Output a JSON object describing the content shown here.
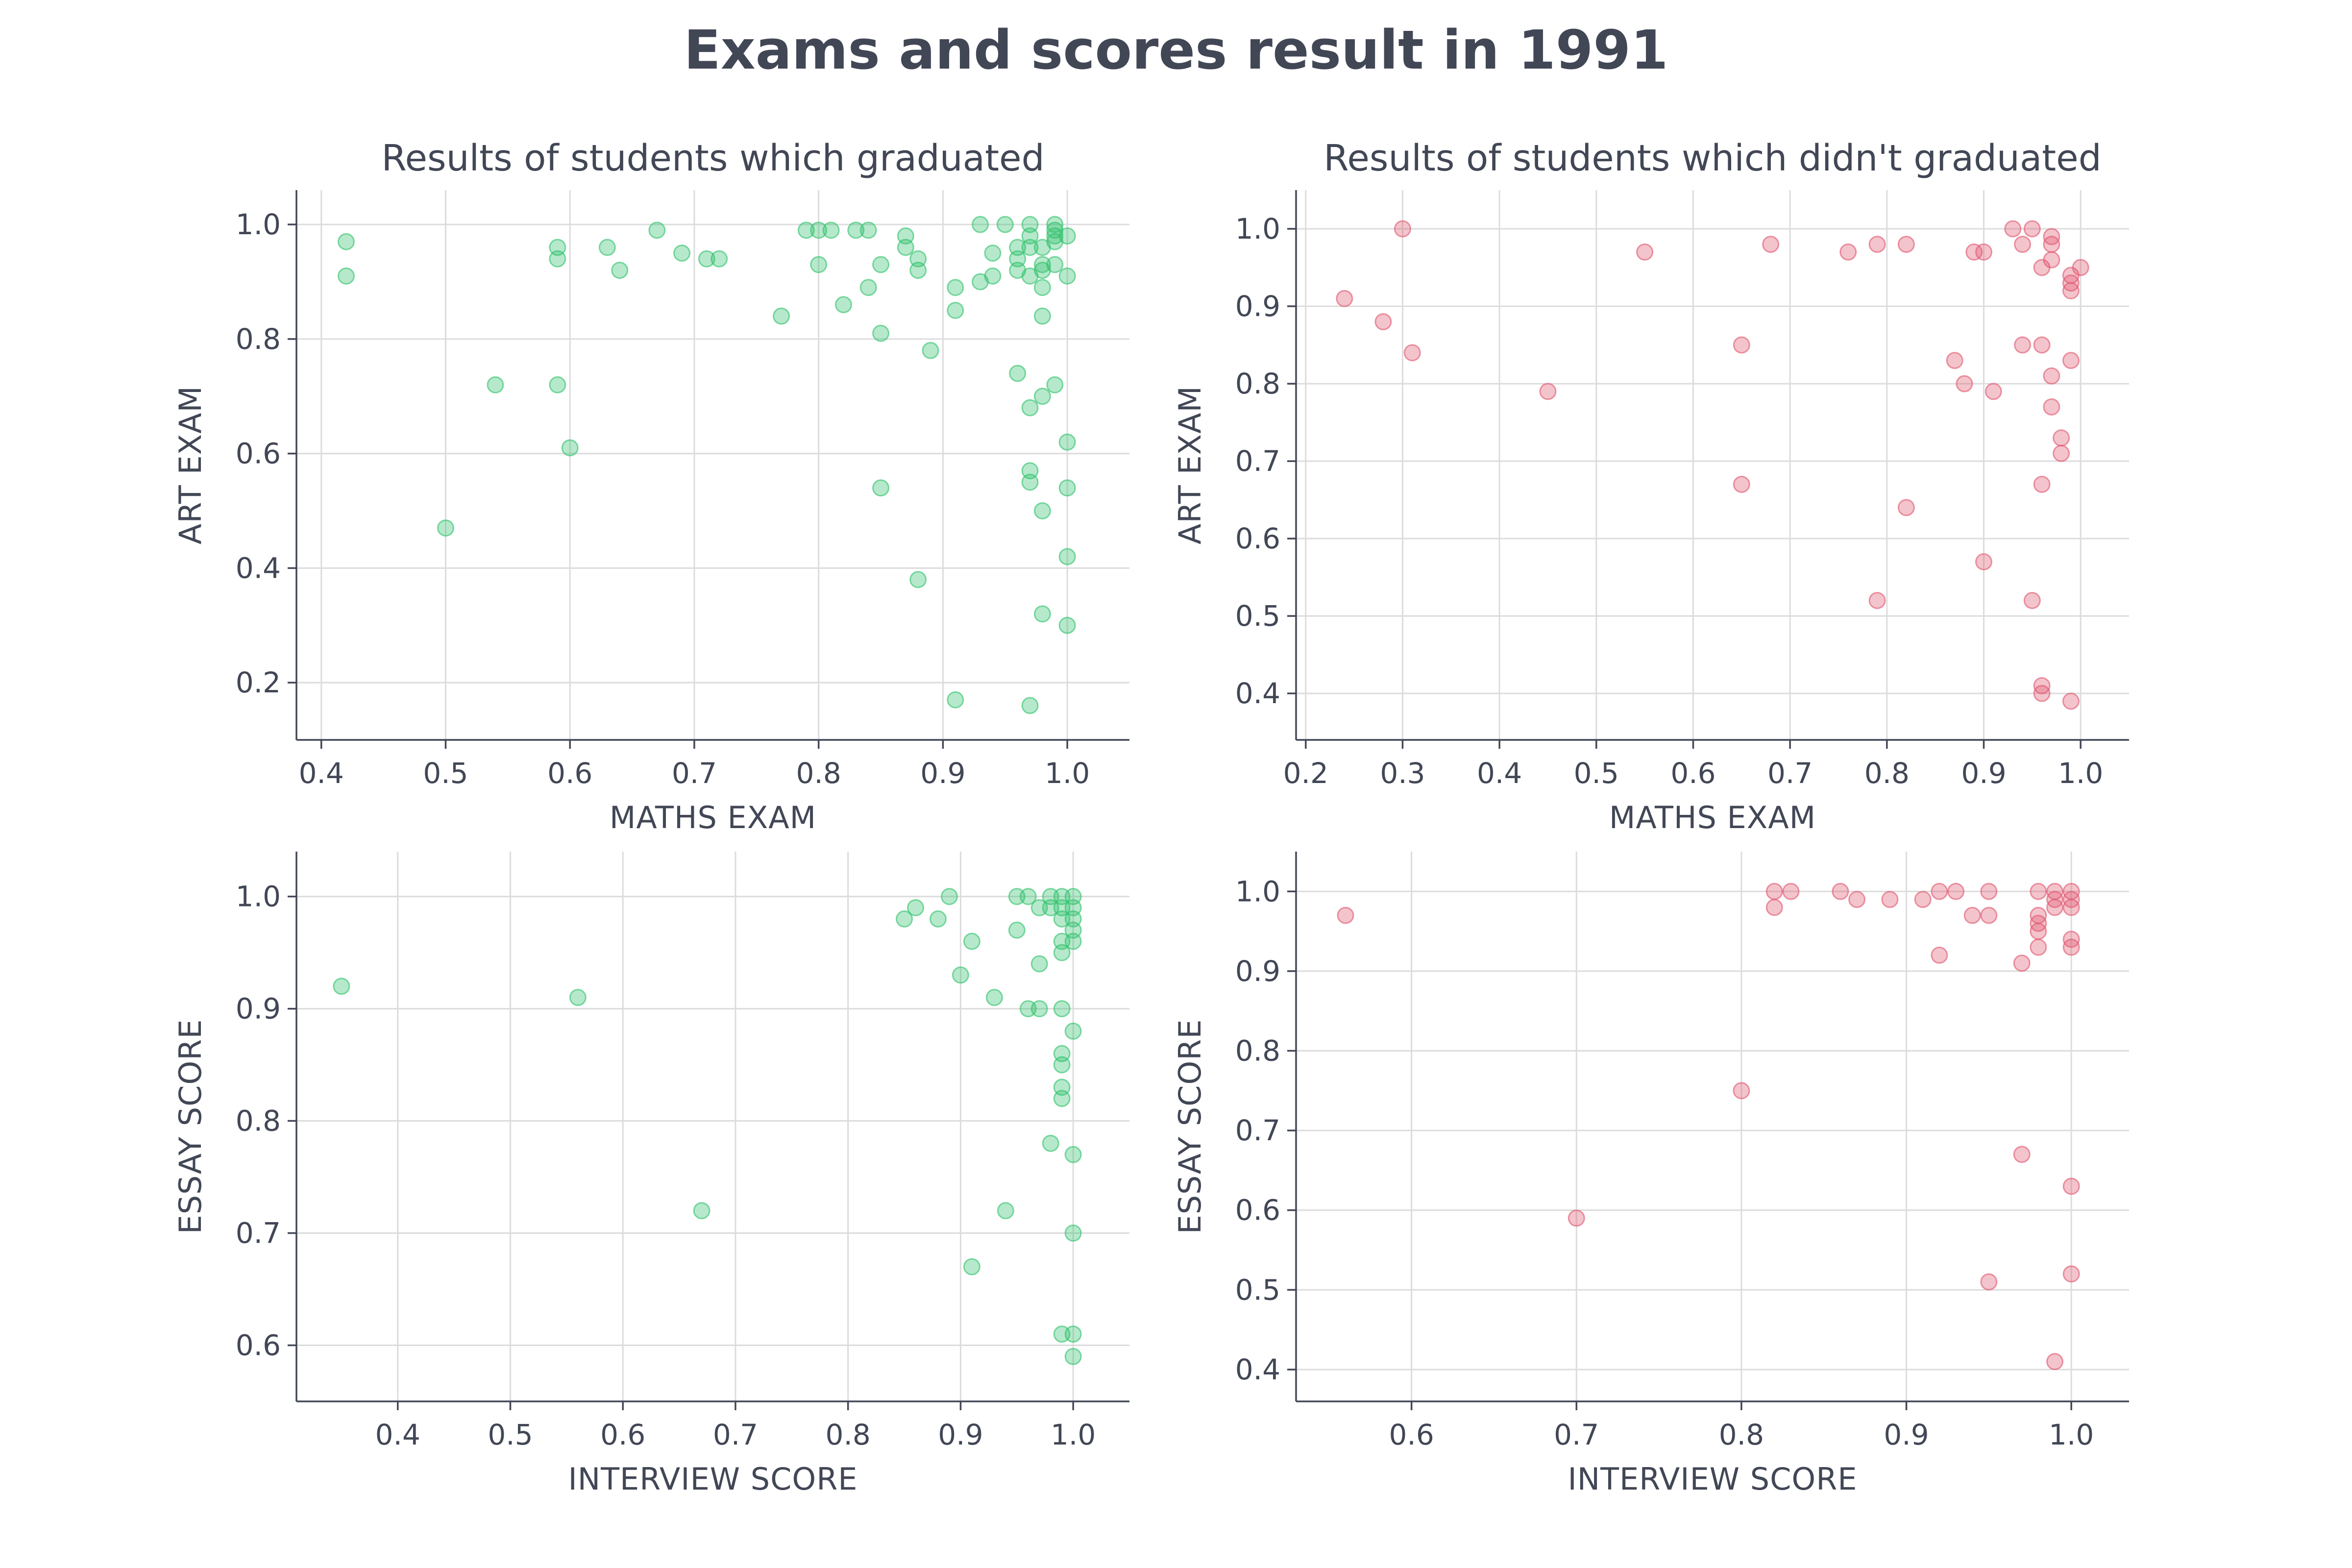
{
  "figure": {
    "title": "Exams and scores result in 1991",
    "colors": {
      "graduated": "#2fc16a",
      "not_graduated": "#e0556e"
    }
  },
  "chart_data": [
    {
      "type": "scatter",
      "title": "Results of students which graduated",
      "xlabel": "MATHS EXAM",
      "ylabel": "ART EXAM",
      "xlim": [
        0.38,
        1.05
      ],
      "ylim": [
        0.1,
        1.06
      ],
      "xticks": [
        "0.4",
        "0.5",
        "0.6",
        "0.7",
        "0.8",
        "0.9",
        "1.0"
      ],
      "yticks": [
        "0.2",
        "0.4",
        "0.6",
        "0.8",
        "1.0"
      ],
      "grid": true,
      "color": "#2fc16a",
      "points": [
        [
          0.42,
          0.97
        ],
        [
          0.42,
          0.91
        ],
        [
          0.5,
          0.47
        ],
        [
          0.54,
          0.72
        ],
        [
          0.59,
          0.96
        ],
        [
          0.59,
          0.94
        ],
        [
          0.59,
          0.72
        ],
        [
          0.6,
          0.61
        ],
        [
          0.63,
          0.96
        ],
        [
          0.64,
          0.92
        ],
        [
          0.67,
          0.99
        ],
        [
          0.69,
          0.95
        ],
        [
          0.71,
          0.94
        ],
        [
          0.72,
          0.94
        ],
        [
          0.77,
          0.84
        ],
        [
          0.79,
          0.99
        ],
        [
          0.8,
          0.99
        ],
        [
          0.81,
          0.99
        ],
        [
          0.8,
          0.93
        ],
        [
          0.82,
          0.86
        ],
        [
          0.83,
          0.99
        ],
        [
          0.84,
          0.99
        ],
        [
          0.84,
          0.89
        ],
        [
          0.85,
          0.93
        ],
        [
          0.85,
          0.81
        ],
        [
          0.85,
          0.54
        ],
        [
          0.87,
          0.98
        ],
        [
          0.87,
          0.96
        ],
        [
          0.88,
          0.94
        ],
        [
          0.88,
          0.92
        ],
        [
          0.88,
          0.38
        ],
        [
          0.89,
          0.78
        ],
        [
          0.91,
          0.89
        ],
        [
          0.91,
          0.85
        ],
        [
          0.91,
          0.17
        ],
        [
          0.93,
          1.0
        ],
        [
          0.93,
          0.9
        ],
        [
          0.94,
          0.95
        ],
        [
          0.94,
          0.91
        ],
        [
          0.95,
          1.0
        ],
        [
          0.96,
          0.96
        ],
        [
          0.96,
          0.94
        ],
        [
          0.96,
          0.92
        ],
        [
          0.96,
          0.74
        ],
        [
          0.97,
          1.0
        ],
        [
          0.97,
          0.98
        ],
        [
          0.97,
          0.96
        ],
        [
          0.97,
          0.91
        ],
        [
          0.97,
          0.68
        ],
        [
          0.97,
          0.57
        ],
        [
          0.97,
          0.55
        ],
        [
          0.97,
          0.16
        ],
        [
          0.98,
          0.96
        ],
        [
          0.98,
          0.93
        ],
        [
          0.98,
          0.92
        ],
        [
          0.98,
          0.89
        ],
        [
          0.98,
          0.84
        ],
        [
          0.98,
          0.7
        ],
        [
          0.98,
          0.5
        ],
        [
          0.98,
          0.32
        ],
        [
          0.99,
          1.0
        ],
        [
          0.99,
          0.99
        ],
        [
          0.99,
          0.98
        ],
        [
          0.99,
          0.97
        ],
        [
          0.99,
          0.93
        ],
        [
          0.99,
          0.72
        ],
        [
          1.0,
          0.98
        ],
        [
          1.0,
          0.91
        ],
        [
          1.0,
          0.62
        ],
        [
          1.0,
          0.54
        ],
        [
          1.0,
          0.42
        ],
        [
          1.0,
          0.3
        ]
      ]
    },
    {
      "type": "scatter",
      "title": "Results of students which didn't graduated",
      "xlabel": "MATHS EXAM",
      "ylabel": "ART EXAM",
      "xlim": [
        0.19,
        1.05
      ],
      "ylim": [
        0.34,
        1.05
      ],
      "xticks": [
        "0.2",
        "0.3",
        "0.4",
        "0.5",
        "0.6",
        "0.7",
        "0.8",
        "0.9",
        "1.0"
      ],
      "yticks": [
        "0.4",
        "0.5",
        "0.6",
        "0.7",
        "0.8",
        "0.9",
        "1.0"
      ],
      "grid": true,
      "color": "#e0556e",
      "points": [
        [
          0.24,
          0.91
        ],
        [
          0.28,
          0.88
        ],
        [
          0.3,
          1.0
        ],
        [
          0.31,
          0.84
        ],
        [
          0.45,
          0.79
        ],
        [
          0.55,
          0.97
        ],
        [
          0.65,
          0.85
        ],
        [
          0.65,
          0.67
        ],
        [
          0.68,
          0.98
        ],
        [
          0.76,
          0.97
        ],
        [
          0.79,
          0.98
        ],
        [
          0.79,
          0.52
        ],
        [
          0.82,
          0.98
        ],
        [
          0.82,
          0.64
        ],
        [
          0.87,
          0.83
        ],
        [
          0.88,
          0.8
        ],
        [
          0.89,
          0.97
        ],
        [
          0.9,
          0.97
        ],
        [
          0.9,
          0.57
        ],
        [
          0.91,
          0.79
        ],
        [
          0.93,
          1.0
        ],
        [
          0.94,
          0.98
        ],
        [
          0.94,
          0.85
        ],
        [
          0.95,
          1.0
        ],
        [
          0.95,
          0.52
        ],
        [
          0.96,
          0.95
        ],
        [
          0.96,
          0.85
        ],
        [
          0.96,
          0.67
        ],
        [
          0.96,
          0.41
        ],
        [
          0.96,
          0.4
        ],
        [
          0.97,
          0.99
        ],
        [
          0.97,
          0.98
        ],
        [
          0.97,
          0.96
        ],
        [
          0.97,
          0.81
        ],
        [
          0.97,
          0.77
        ],
        [
          0.98,
          0.73
        ],
        [
          0.98,
          0.71
        ],
        [
          0.99,
          0.94
        ],
        [
          0.99,
          0.93
        ],
        [
          0.99,
          0.92
        ],
        [
          0.99,
          0.83
        ],
        [
          0.99,
          0.39
        ],
        [
          1.0,
          0.95
        ]
      ]
    },
    {
      "type": "scatter",
      "title": "",
      "xlabel": "INTERVIEW SCORE",
      "ylabel": "ESSAY SCORE",
      "xlim": [
        0.31,
        1.05
      ],
      "ylim": [
        0.55,
        1.04
      ],
      "xticks": [
        "0.4",
        "0.5",
        "0.6",
        "0.7",
        "0.8",
        "0.9",
        "1.0"
      ],
      "yticks": [
        "0.6",
        "0.7",
        "0.8",
        "0.9",
        "1.0"
      ],
      "grid": true,
      "color": "#2fc16a",
      "points": [
        [
          0.35,
          0.92
        ],
        [
          0.56,
          0.91
        ],
        [
          0.67,
          0.72
        ],
        [
          0.85,
          0.98
        ],
        [
          0.86,
          0.99
        ],
        [
          0.88,
          0.98
        ],
        [
          0.89,
          1.0
        ],
        [
          0.9,
          0.93
        ],
        [
          0.91,
          0.96
        ],
        [
          0.91,
          0.67
        ],
        [
          0.93,
          0.91
        ],
        [
          0.94,
          0.72
        ],
        [
          0.95,
          1.0
        ],
        [
          0.95,
          0.97
        ],
        [
          0.96,
          1.0
        ],
        [
          0.96,
          0.9
        ],
        [
          0.97,
          0.99
        ],
        [
          0.97,
          0.94
        ],
        [
          0.97,
          0.9
        ],
        [
          0.98,
          1.0
        ],
        [
          0.98,
          0.99
        ],
        [
          0.98,
          0.78
        ],
        [
          0.99,
          1.0
        ],
        [
          0.99,
          0.99
        ],
        [
          0.99,
          0.98
        ],
        [
          0.99,
          0.96
        ],
        [
          0.99,
          0.95
        ],
        [
          0.99,
          0.9
        ],
        [
          0.99,
          0.86
        ],
        [
          0.99,
          0.85
        ],
        [
          0.99,
          0.83
        ],
        [
          0.99,
          0.82
        ],
        [
          0.99,
          0.61
        ],
        [
          1.0,
          1.0
        ],
        [
          1.0,
          0.99
        ],
        [
          1.0,
          0.98
        ],
        [
          1.0,
          0.97
        ],
        [
          1.0,
          0.96
        ],
        [
          1.0,
          0.88
        ],
        [
          1.0,
          0.77
        ],
        [
          1.0,
          0.7
        ],
        [
          1.0,
          0.61
        ],
        [
          1.0,
          0.59
        ]
      ]
    },
    {
      "type": "scatter",
      "title": "",
      "xlabel": "INTERVIEW SCORE",
      "ylabel": "ESSAY SCORE",
      "xlim": [
        0.53,
        1.035
      ],
      "ylim": [
        0.36,
        1.05
      ],
      "xticks": [
        "0.6",
        "0.7",
        "0.8",
        "0.9",
        "1.0"
      ],
      "yticks": [
        "0.4",
        "0.5",
        "0.6",
        "0.7",
        "0.8",
        "0.9",
        "1.0"
      ],
      "grid": true,
      "color": "#e0556e",
      "points": [
        [
          0.56,
          0.97
        ],
        [
          0.7,
          0.59
        ],
        [
          0.8,
          0.75
        ],
        [
          0.82,
          1.0
        ],
        [
          0.82,
          0.98
        ],
        [
          0.83,
          1.0
        ],
        [
          0.86,
          1.0
        ],
        [
          0.87,
          0.99
        ],
        [
          0.89,
          0.99
        ],
        [
          0.91,
          0.99
        ],
        [
          0.92,
          1.0
        ],
        [
          0.92,
          0.92
        ],
        [
          0.93,
          1.0
        ],
        [
          0.94,
          0.97
        ],
        [
          0.95,
          1.0
        ],
        [
          0.95,
          0.97
        ],
        [
          0.95,
          0.51
        ],
        [
          0.97,
          0.91
        ],
        [
          0.97,
          0.67
        ],
        [
          0.98,
          1.0
        ],
        [
          0.98,
          0.97
        ],
        [
          0.98,
          0.96
        ],
        [
          0.98,
          0.95
        ],
        [
          0.98,
          0.93
        ],
        [
          0.99,
          1.0
        ],
        [
          0.99,
          0.99
        ],
        [
          0.99,
          0.98
        ],
        [
          0.99,
          0.41
        ],
        [
          1.0,
          1.0
        ],
        [
          1.0,
          0.99
        ],
        [
          1.0,
          0.98
        ],
        [
          1.0,
          0.94
        ],
        [
          1.0,
          0.93
        ],
        [
          1.0,
          0.63
        ],
        [
          1.0,
          0.52
        ]
      ]
    }
  ]
}
